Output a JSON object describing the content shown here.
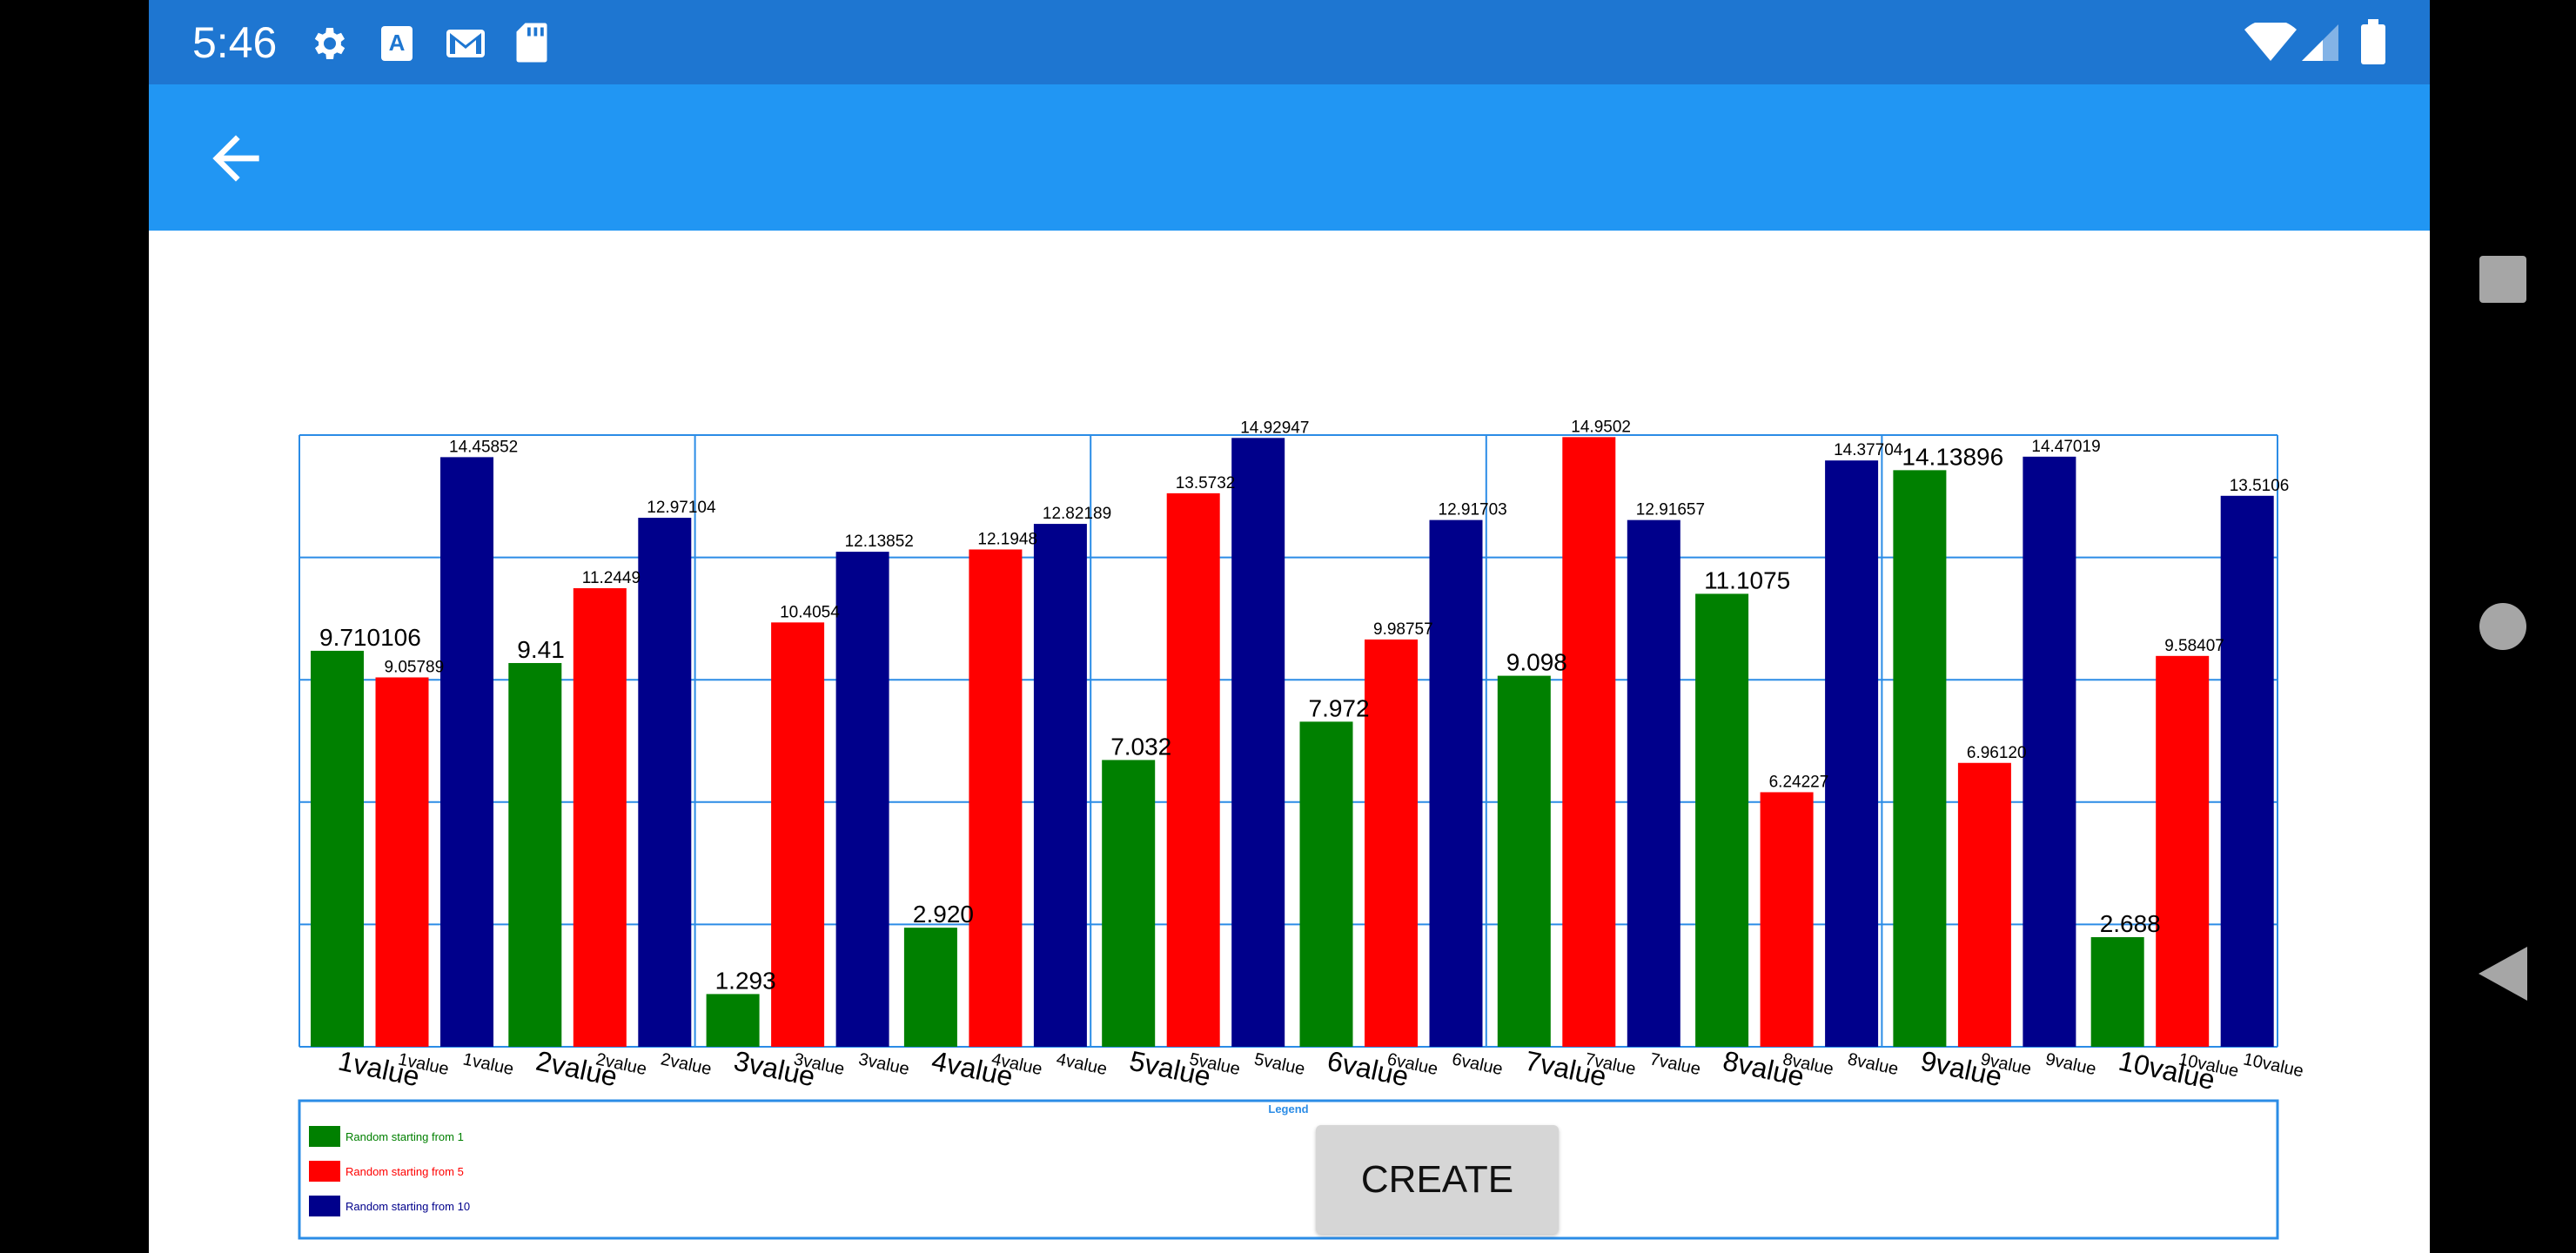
{
  "status_bar": {
    "time": "5:46",
    "left_icons": [
      "settings-icon",
      "text-a-icon",
      "gmail-icon",
      "sd-card-icon"
    ],
    "right_icons": [
      "wifi-icon",
      "cell-signal-icon",
      "battery-icon"
    ],
    "color": "#1e76d1"
  },
  "app_bar": {
    "color": "#2196f3",
    "back_icon": "arrow-left-icon"
  },
  "nav_bar": {
    "icons": [
      "recent-apps-square-icon",
      "home-circle-icon",
      "back-triangle-icon"
    ]
  },
  "create_button": {
    "label": "CREATE"
  },
  "chart_data": {
    "type": "bar",
    "categories": [
      "1value",
      "2value",
      "3value",
      "4value",
      "5value",
      "6value",
      "7value",
      "8value",
      "9value",
      "10value"
    ],
    "series": [
      {
        "name": "Random starting from 1",
        "color": "#008000",
        "values": [
          9.710106,
          9.41,
          1.293,
          2.92,
          7.032,
          7.972,
          9.098,
          11.1075,
          14.13896,
          2.688
        ],
        "labels": [
          "9.710106",
          "9.41",
          "1.293",
          "2.920",
          "7.032",
          "7.972",
          "9.098",
          "11.1075",
          "14.13896",
          "2.688"
        ]
      },
      {
        "name": "Random starting from 5",
        "color": "#ff0000",
        "values": [
          9.05789,
          11.2449,
          10.4054,
          12.1948,
          13.5732,
          9.98757,
          14.9502,
          6.24227,
          6.9612,
          9.58407
        ],
        "labels": [
          "9.05789",
          "11.2449",
          "10.4054",
          "12.1948",
          "13.5732",
          "9.98757",
          "14.9502",
          "6.24227",
          "6.96120",
          "9.58407"
        ]
      },
      {
        "name": "Random starting from 10",
        "color": "#00008b",
        "values": [
          14.45852,
          12.97104,
          12.13852,
          12.82189,
          14.92947,
          12.91703,
          12.91657,
          14.37704,
          14.47019,
          13.5106
        ],
        "labels": [
          "14.45852",
          "12.97104",
          "12.13852",
          "12.82189",
          "14.92947",
          "12.91703",
          "12.91657",
          "14.37704",
          "14.47019",
          "13.5106"
        ]
      }
    ],
    "ylim": [
      0,
      15
    ],
    "grid": true,
    "legend": {
      "title": "Legend",
      "position": "bottom-left"
    },
    "grid_color": "#2b8ce6"
  }
}
